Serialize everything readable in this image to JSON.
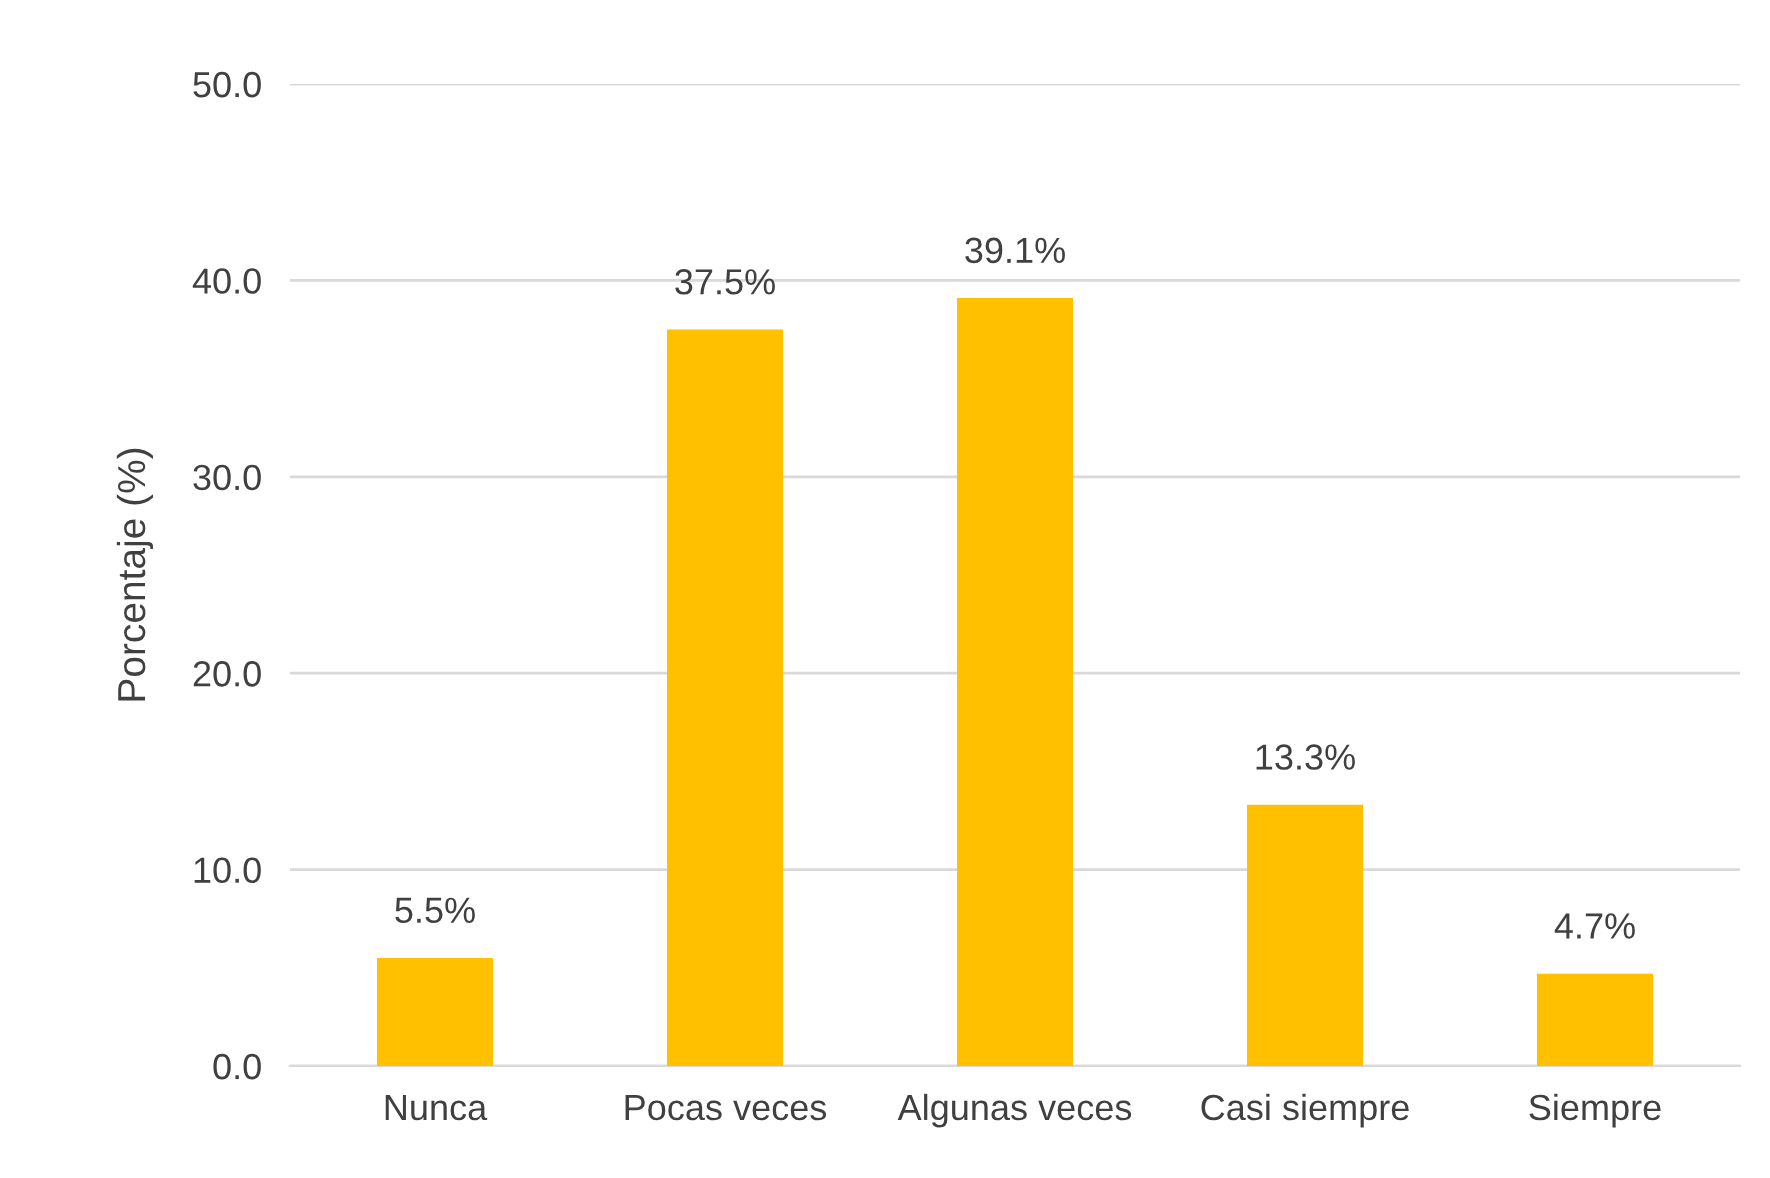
{
  "chart_data": {
    "type": "bar",
    "ylabel": "Porcentaje (%)",
    "categories": [
      "Nunca",
      "Pocas veces",
      "Algunas veces",
      "Casi siempre",
      "Siempre"
    ],
    "values": [
      5.5,
      37.5,
      39.1,
      13.3,
      4.7
    ],
    "value_labels": [
      "5.5%",
      "37.5%",
      "39.1%",
      "13.3%",
      "4.7%"
    ],
    "color": "#ffc000",
    "ylim": [
      0,
      50
    ],
    "yticks": [
      {
        "value": 0,
        "label": "0.0"
      },
      {
        "value": 10,
        "label": "10.0"
      },
      {
        "value": 20,
        "label": "20.0"
      },
      {
        "value": 30,
        "label": "30.0"
      },
      {
        "value": 40,
        "label": "40.0"
      },
      {
        "value": 50,
        "label": "50.0"
      }
    ],
    "grid": "y"
  }
}
